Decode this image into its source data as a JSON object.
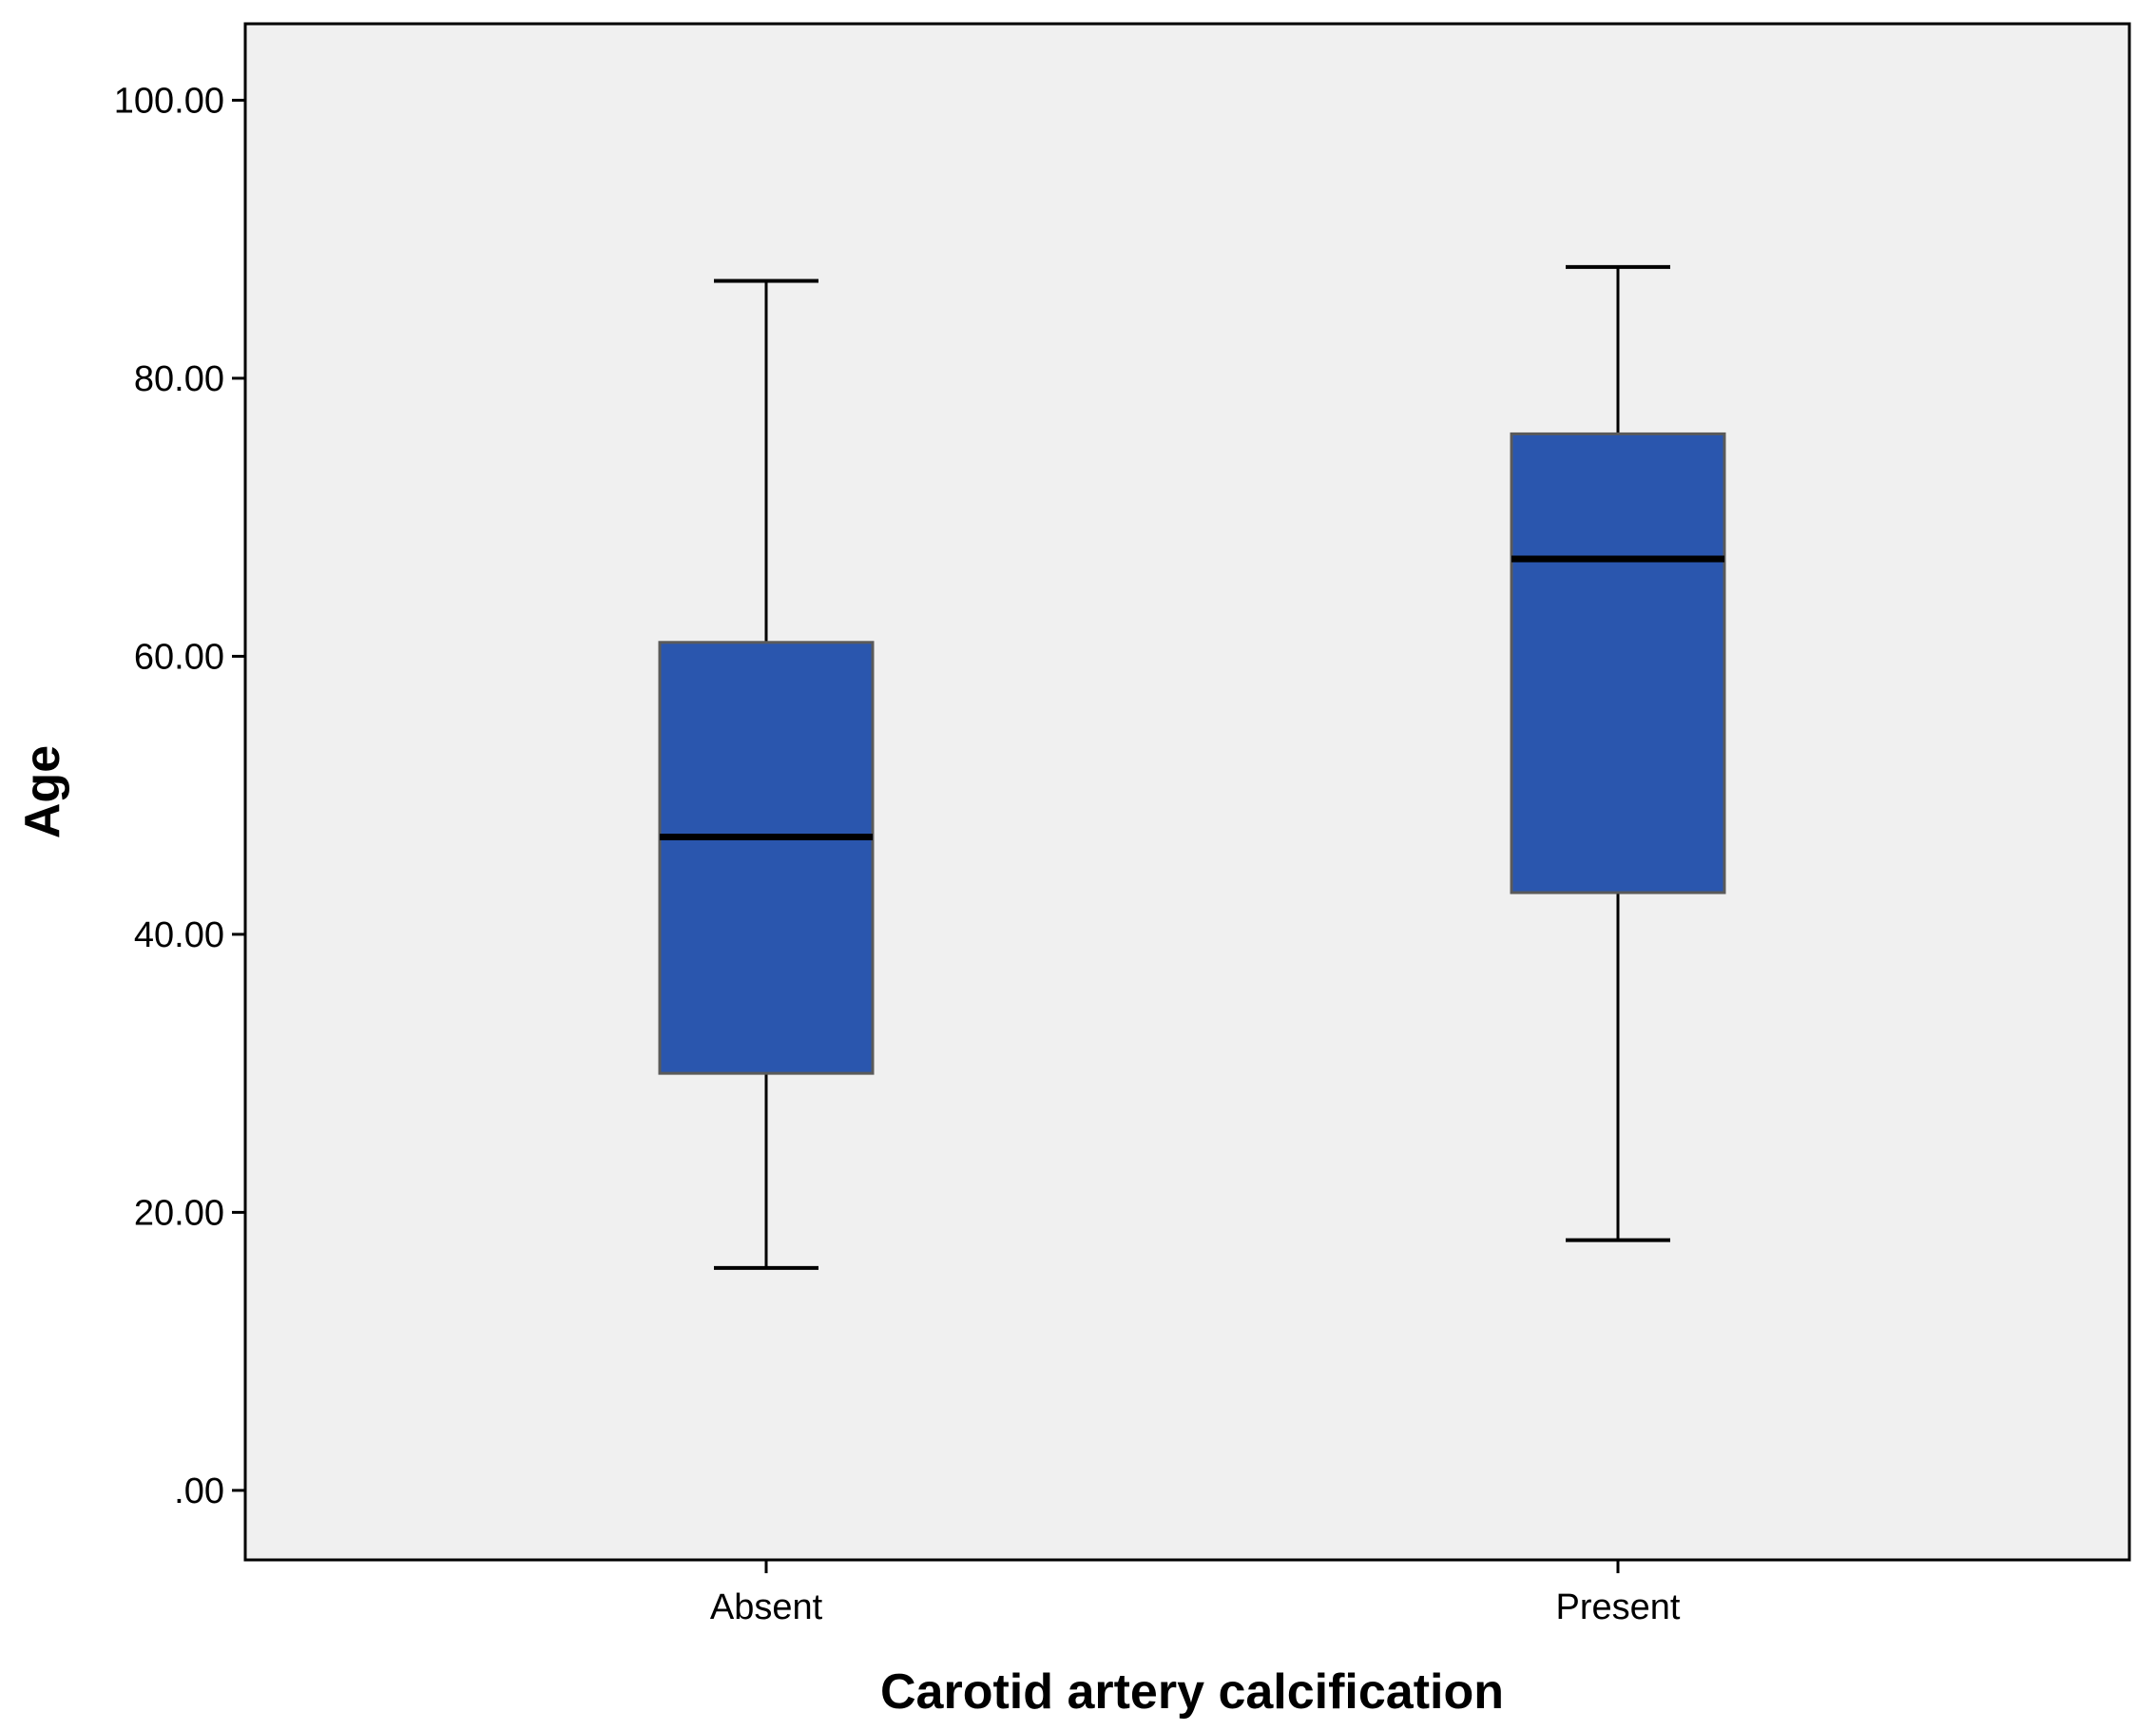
{
  "chart_data": {
    "type": "boxplot",
    "title": "",
    "xlabel": "Carotid artery calcification",
    "ylabel": "Age",
    "ylim": [
      -5,
      105.5
    ],
    "yticks": [
      0,
      20,
      40,
      60,
      80,
      100
    ],
    "ytick_labels": [
      ".00",
      "20.00",
      "40.00",
      "60.00",
      "80.00",
      "100.00"
    ],
    "grid": false,
    "categories": [
      "Absent",
      "Present"
    ],
    "series": [
      {
        "name": "Absent",
        "min": 16,
        "q1": 30,
        "median": 47,
        "q3": 61,
        "max": 87
      },
      {
        "name": "Present",
        "min": 18,
        "q1": 43,
        "median": 67,
        "q3": 76,
        "max": 88
      }
    ]
  },
  "colors": {
    "plot_background": "#F0F0F0",
    "box_fill": "#2A56AE",
    "box_border": "#5A5A5A",
    "axis": "#000000",
    "whisker": "#000000",
    "median": "#000000"
  }
}
